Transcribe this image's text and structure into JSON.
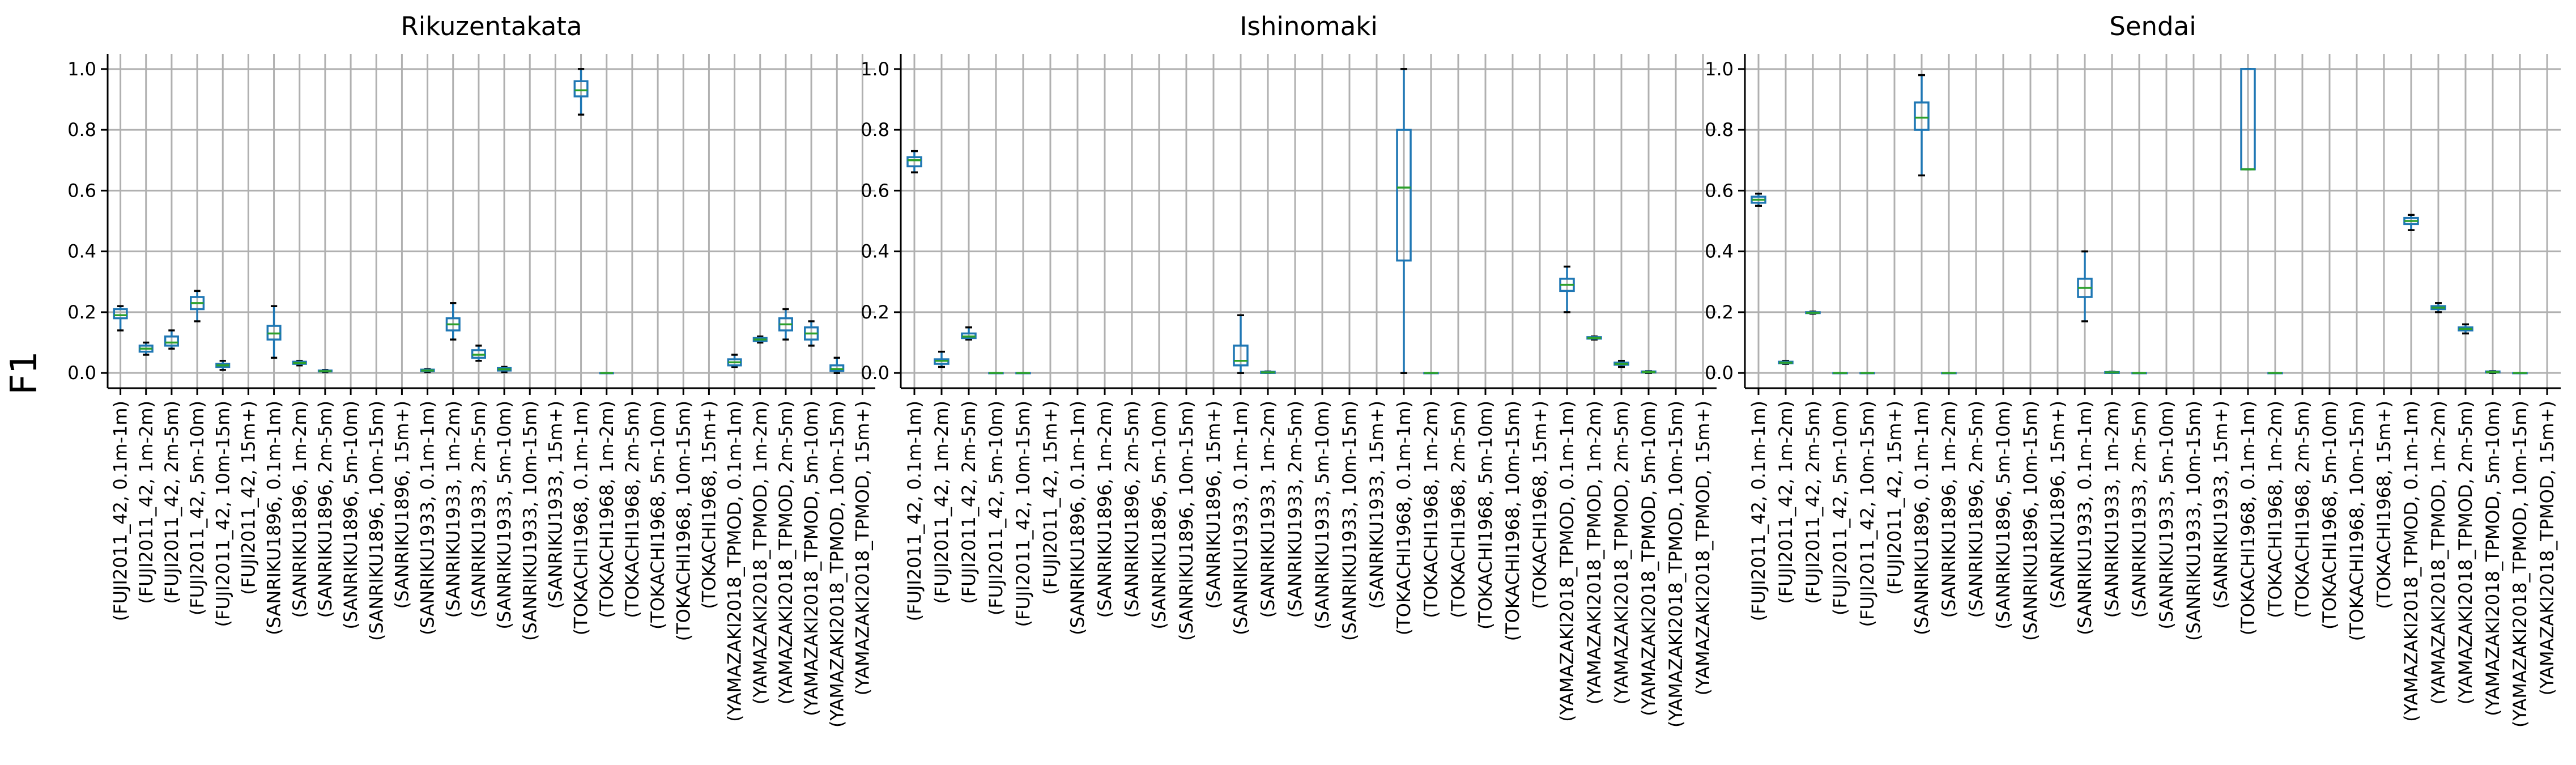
{
  "chart_data": {
    "type": "box",
    "ylabel": "F1",
    "ylim": [
      -0.05,
      1.05
    ],
    "yticks": [
      0.0,
      0.2,
      0.4,
      0.6,
      0.8,
      1.0
    ],
    "ytick_labels": [
      "0.0",
      "0.2",
      "0.4",
      "0.6",
      "0.8",
      "1.0"
    ],
    "grid": true,
    "colors": {
      "box": "#1f77b4",
      "median": "#2ca02c",
      "whisker": "#1f77b4",
      "cap": "#000000",
      "grid": "#b0b0b0"
    },
    "categories": [
      "(FUJI2011_42, 0.1m-1m)",
      "(FUJI2011_42, 1m-2m)",
      "(FUJI2011_42, 2m-5m)",
      "(FUJI2011_42, 5m-10m)",
      "(FUJI2011_42, 10m-15m)",
      "(FUJI2011_42, 15m+)",
      "(SANRIKU1896, 0.1m-1m)",
      "(SANRIKU1896, 1m-2m)",
      "(SANRIKU1896, 2m-5m)",
      "(SANRIKU1896, 5m-10m)",
      "(SANRIKU1896, 10m-15m)",
      "(SANRIKU1896, 15m+)",
      "(SANRIKU1933, 0.1m-1m)",
      "(SANRIKU1933, 1m-2m)",
      "(SANRIKU1933, 2m-5m)",
      "(SANRIKU1933, 5m-10m)",
      "(SANRIKU1933, 10m-15m)",
      "(SANRIKU1933, 15m+)",
      "(TOKACHI1968, 0.1m-1m)",
      "(TOKACHI1968, 1m-2m)",
      "(TOKACHI1968, 2m-5m)",
      "(TOKACHI1968, 5m-10m)",
      "(TOKACHI1968, 10m-15m)",
      "(TOKACHI1968, 15m+)",
      "(YAMAZAKI2018_TPMOD, 0.1m-1m)",
      "(YAMAZAKI2018_TPMOD, 1m-2m)",
      "(YAMAZAKI2018_TPMOD, 2m-5m)",
      "(YAMAZAKI2018_TPMOD, 5m-10m)",
      "(YAMAZAKI2018_TPMOD, 10m-15m)",
      "(YAMAZAKI2018_TPMOD, 15m+)"
    ],
    "panels": [
      {
        "title": "Rikuzentakata",
        "boxes": [
          {
            "min": 0.14,
            "q1": 0.18,
            "median": 0.19,
            "q3": 0.21,
            "max": 0.22
          },
          {
            "min": 0.06,
            "q1": 0.07,
            "median": 0.08,
            "q3": 0.09,
            "max": 0.1
          },
          {
            "min": 0.08,
            "q1": 0.09,
            "median": 0.1,
            "q3": 0.12,
            "max": 0.14
          },
          {
            "min": 0.17,
            "q1": 0.21,
            "median": 0.23,
            "q3": 0.25,
            "max": 0.27
          },
          {
            "min": 0.01,
            "q1": 0.02,
            "median": 0.025,
            "q3": 0.03,
            "max": 0.04
          },
          null,
          {
            "min": 0.05,
            "q1": 0.11,
            "median": 0.13,
            "q3": 0.155,
            "max": 0.22
          },
          {
            "min": 0.025,
            "q1": 0.03,
            "median": 0.033,
            "q3": 0.037,
            "max": 0.04
          },
          {
            "min": 0.003,
            "q1": 0.005,
            "median": 0.006,
            "q3": 0.008,
            "max": 0.01
          },
          null,
          null,
          null,
          {
            "min": 0.003,
            "q1": 0.006,
            "median": 0.008,
            "q3": 0.011,
            "max": 0.013
          },
          {
            "min": 0.11,
            "q1": 0.14,
            "median": 0.16,
            "q3": 0.18,
            "max": 0.23
          },
          {
            "min": 0.04,
            "q1": 0.05,
            "median": 0.06,
            "q3": 0.075,
            "max": 0.09
          },
          {
            "min": 0.003,
            "q1": 0.008,
            "median": 0.012,
            "q3": 0.016,
            "max": 0.02
          },
          null,
          null,
          {
            "min": 0.85,
            "q1": 0.91,
            "median": 0.93,
            "q3": 0.96,
            "max": 1.0
          },
          {
            "min": 0.0,
            "q1": 0.0,
            "median": 0.0,
            "q3": 0.0,
            "max": 0.0
          },
          null,
          null,
          null,
          null,
          {
            "min": 0.02,
            "q1": 0.025,
            "median": 0.035,
            "q3": 0.045,
            "max": 0.06
          },
          {
            "min": 0.1,
            "q1": 0.105,
            "median": 0.11,
            "q3": 0.115,
            "max": 0.12
          },
          {
            "min": 0.11,
            "q1": 0.14,
            "median": 0.16,
            "q3": 0.18,
            "max": 0.21
          },
          {
            "min": 0.09,
            "q1": 0.11,
            "median": 0.13,
            "q3": 0.15,
            "max": 0.17
          },
          {
            "min": 0.0,
            "q1": 0.007,
            "median": 0.013,
            "q3": 0.025,
            "max": 0.05
          },
          null
        ]
      },
      {
        "title": "Ishinomaki",
        "boxes": [
          {
            "min": 0.66,
            "q1": 0.68,
            "median": 0.7,
            "q3": 0.71,
            "max": 0.73
          },
          {
            "min": 0.02,
            "q1": 0.03,
            "median": 0.04,
            "q3": 0.045,
            "max": 0.07
          },
          {
            "min": 0.11,
            "q1": 0.115,
            "median": 0.12,
            "q3": 0.13,
            "max": 0.15
          },
          {
            "min": 0.0,
            "q1": 0.0,
            "median": 0.0,
            "q3": 0.0,
            "max": 0.0
          },
          {
            "min": 0.0,
            "q1": 0.0,
            "median": 0.0,
            "q3": 0.0,
            "max": 0.0
          },
          null,
          null,
          null,
          null,
          null,
          null,
          null,
          {
            "min": 0.0,
            "q1": 0.025,
            "median": 0.04,
            "q3": 0.09,
            "max": 0.19
          },
          {
            "min": 0.0,
            "q1": 0.0,
            "median": 0.002,
            "q3": 0.004,
            "max": 0.005
          },
          null,
          null,
          null,
          null,
          {
            "min": 0.0,
            "q1": 0.37,
            "median": 0.61,
            "q3": 0.8,
            "max": 1.0
          },
          {
            "min": 0.0,
            "q1": 0.0,
            "median": 0.0,
            "q3": 0.0,
            "max": 0.0
          },
          null,
          null,
          null,
          null,
          {
            "min": 0.2,
            "q1": 0.27,
            "median": 0.29,
            "q3": 0.31,
            "max": 0.35
          },
          {
            "min": 0.11,
            "q1": 0.113,
            "median": 0.115,
            "q3": 0.118,
            "max": 0.12
          },
          {
            "min": 0.02,
            "q1": 0.027,
            "median": 0.03,
            "q3": 0.034,
            "max": 0.04
          },
          {
            "min": 0.0,
            "q1": 0.002,
            "median": 0.003,
            "q3": 0.005,
            "max": 0.006
          },
          null,
          null
        ]
      },
      {
        "title": "Sendai",
        "boxes": [
          {
            "min": 0.55,
            "q1": 0.56,
            "median": 0.57,
            "q3": 0.58,
            "max": 0.59
          },
          {
            "min": 0.03,
            "q1": 0.032,
            "median": 0.034,
            "q3": 0.037,
            "max": 0.04
          },
          {
            "min": 0.195,
            "q1": 0.197,
            "median": 0.198,
            "q3": 0.2,
            "max": 0.202
          },
          {
            "min": 0.0,
            "q1": 0.0,
            "median": 0.0,
            "q3": 0.0,
            "max": 0.0
          },
          {
            "min": 0.0,
            "q1": 0.0,
            "median": 0.0,
            "q3": 0.0,
            "max": 0.0
          },
          null,
          {
            "min": 0.65,
            "q1": 0.8,
            "median": 0.84,
            "q3": 0.89,
            "max": 0.98
          },
          {
            "min": 0.0,
            "q1": 0.0,
            "median": 0.0,
            "q3": 0.0,
            "max": 0.0
          },
          null,
          null,
          null,
          null,
          {
            "min": 0.17,
            "q1": 0.25,
            "median": 0.28,
            "q3": 0.31,
            "max": 0.4
          },
          {
            "min": 0.0,
            "q1": 0.0,
            "median": 0.002,
            "q3": 0.003,
            "max": 0.004
          },
          {
            "min": 0.0,
            "q1": 0.0,
            "median": 0.0,
            "q3": 0.0,
            "max": 0.0
          },
          null,
          null,
          null,
          {
            "min": 0.67,
            "q1": 0.67,
            "median": 0.67,
            "q3": 1.0,
            "max": 1.0
          },
          {
            "min": 0.0,
            "q1": 0.0,
            "median": 0.0,
            "q3": 0.0,
            "max": 0.0
          },
          null,
          null,
          null,
          null,
          {
            "min": 0.47,
            "q1": 0.49,
            "median": 0.5,
            "q3": 0.51,
            "max": 0.52
          },
          {
            "min": 0.2,
            "q1": 0.21,
            "median": 0.215,
            "q3": 0.22,
            "max": 0.23
          },
          {
            "min": 0.13,
            "q1": 0.14,
            "median": 0.145,
            "q3": 0.15,
            "max": 0.16
          },
          {
            "min": 0.0,
            "q1": 0.002,
            "median": 0.003,
            "q3": 0.005,
            "max": 0.006
          },
          {
            "min": 0.0,
            "q1": 0.0,
            "median": 0.0,
            "q3": 0.0,
            "max": 0.0
          },
          null
        ]
      }
    ]
  }
}
